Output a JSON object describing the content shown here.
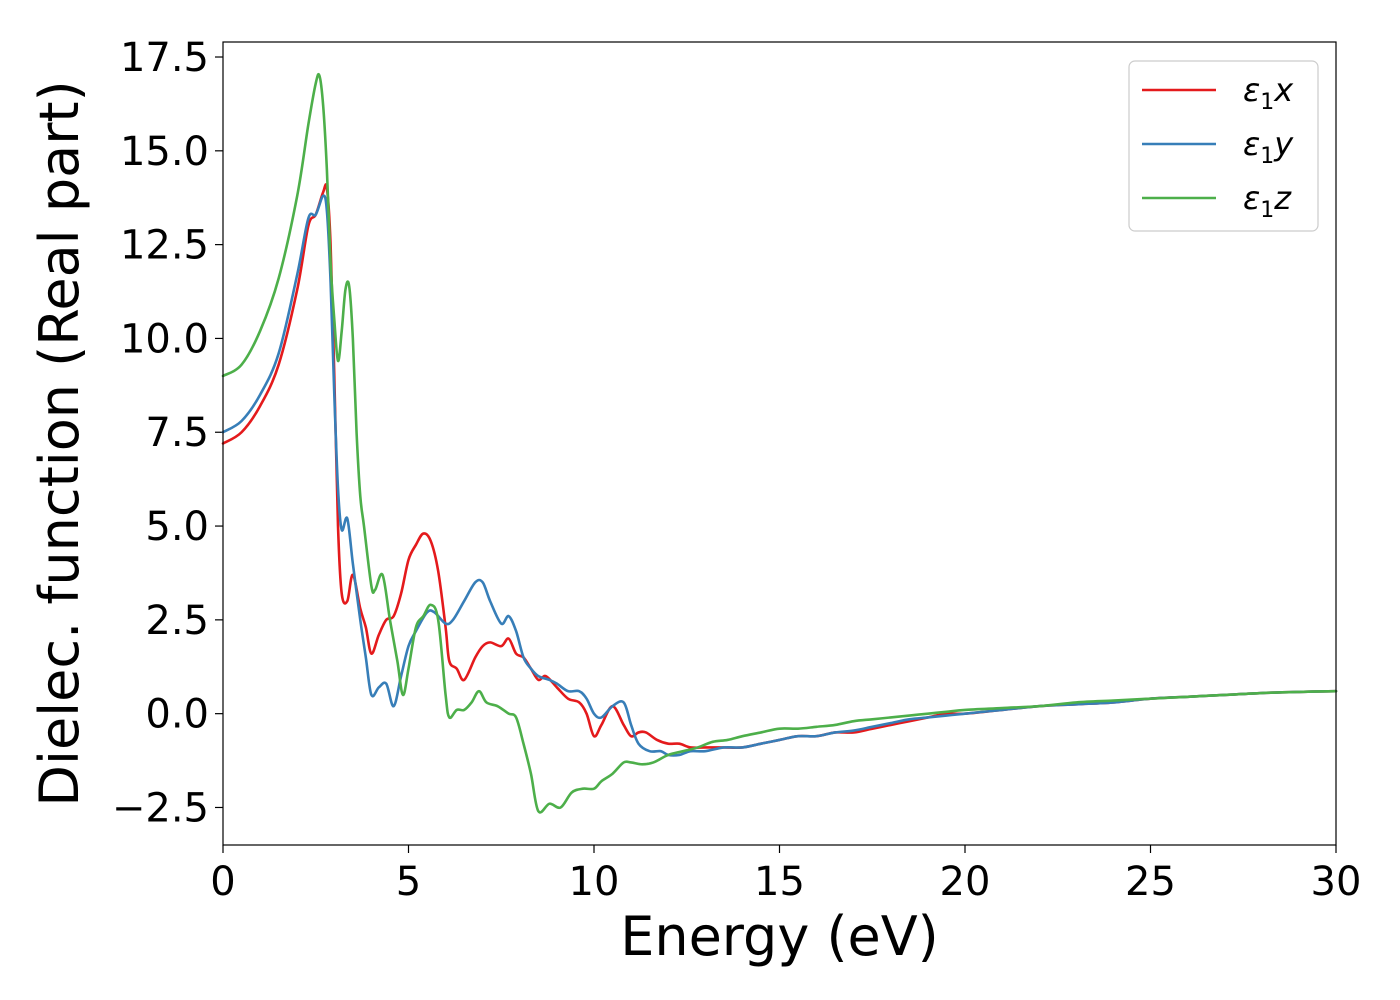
{
  "chart_data": {
    "type": "line",
    "xlabel": "Energy (eV)",
    "ylabel": "Dielec. function (Real part)",
    "xlim": [
      0,
      30
    ],
    "ylim": [
      -3.5,
      17.9
    ],
    "xticks": [
      0,
      5,
      10,
      15,
      20,
      25,
      30
    ],
    "xtick_labels": [
      "0",
      "5",
      "10",
      "15",
      "20",
      "25",
      "30"
    ],
    "yticks": [
      -2.5,
      0.0,
      2.5,
      5.0,
      7.5,
      10.0,
      12.5,
      15.0,
      17.5
    ],
    "ytick_labels": [
      "−2.5",
      "0.0",
      "2.5",
      "5.0",
      "7.5",
      "10.0",
      "12.5",
      "15.0",
      "17.5"
    ],
    "grid": false,
    "legend_position": "top-right",
    "series": [
      {
        "name": "ε1x",
        "legend_base": "ε",
        "legend_sub": "1",
        "legend_tail": "x",
        "color": "#e41a1c",
        "x": [
          0,
          0.5,
          1.0,
          1.5,
          2.0,
          2.3,
          2.5,
          2.7,
          2.8,
          2.9,
          3.0,
          3.1,
          3.2,
          3.35,
          3.5,
          3.7,
          3.85,
          4.0,
          4.2,
          4.4,
          4.6,
          4.8,
          5.0,
          5.2,
          5.4,
          5.6,
          5.8,
          6.0,
          6.1,
          6.3,
          6.5,
          6.8,
          7.0,
          7.2,
          7.5,
          7.7,
          7.9,
          8.1,
          8.3,
          8.5,
          8.7,
          9.0,
          9.3,
          9.6,
          9.8,
          10.0,
          10.2,
          10.5,
          10.8,
          11.0,
          11.2,
          11.4,
          11.7,
          12.0,
          12.3,
          12.6,
          13.0,
          13.5,
          14.0,
          14.5,
          15.0,
          15.5,
          16.0,
          16.5,
          17.0,
          17.5,
          18.0,
          18.5,
          19.0,
          19.5,
          20.0,
          21.0,
          22.0,
          23.0,
          24.0,
          25.0,
          26.0,
          27.0,
          28.0,
          29.0,
          30.0
        ],
        "y": [
          7.2,
          7.5,
          8.2,
          9.3,
          11.3,
          13.0,
          13.3,
          13.9,
          14.0,
          12.5,
          9.0,
          5.0,
          3.2,
          3.0,
          3.7,
          2.8,
          2.3,
          1.6,
          2.1,
          2.5,
          2.6,
          3.2,
          4.1,
          4.5,
          4.8,
          4.6,
          3.8,
          2.3,
          1.4,
          1.2,
          0.9,
          1.5,
          1.8,
          1.9,
          1.8,
          2.0,
          1.6,
          1.5,
          1.2,
          0.9,
          1.0,
          0.7,
          0.4,
          0.3,
          0.0,
          -0.6,
          -0.3,
          0.2,
          -0.3,
          -0.6,
          -0.5,
          -0.5,
          -0.7,
          -0.8,
          -0.8,
          -0.9,
          -0.9,
          -0.9,
          -0.9,
          -0.8,
          -0.7,
          -0.6,
          -0.6,
          -0.5,
          -0.5,
          -0.4,
          -0.3,
          -0.2,
          -0.1,
          0.0,
          0.0,
          0.1,
          0.2,
          0.25,
          0.3,
          0.4,
          0.45,
          0.5,
          0.55,
          0.58,
          0.6
        ]
      },
      {
        "name": "ε1y",
        "legend_base": "ε",
        "legend_sub": "1",
        "legend_tail": "y",
        "color": "#377eb8",
        "x": [
          0,
          0.5,
          1.0,
          1.5,
          2.0,
          2.3,
          2.5,
          2.7,
          2.8,
          2.9,
          3.0,
          3.1,
          3.2,
          3.35,
          3.5,
          3.7,
          3.85,
          4.0,
          4.2,
          4.4,
          4.6,
          4.8,
          5.0,
          5.2,
          5.5,
          5.7,
          6.0,
          6.2,
          6.5,
          6.8,
          7.0,
          7.2,
          7.5,
          7.7,
          7.9,
          8.1,
          8.3,
          8.5,
          8.8,
          9.0,
          9.3,
          9.6,
          9.8,
          10.0,
          10.2,
          10.5,
          10.8,
          11.0,
          11.2,
          11.5,
          11.8,
          12.0,
          12.3,
          12.6,
          13.0,
          13.5,
          14.0,
          14.5,
          15.0,
          15.5,
          16.0,
          16.5,
          17.0,
          17.5,
          18.0,
          18.5,
          19.0,
          19.5,
          20.0,
          21.0,
          22.0,
          23.0,
          24.0,
          25.0,
          26.0,
          27.0,
          28.0,
          29.0,
          30.0
        ],
        "y": [
          7.5,
          7.8,
          8.5,
          9.6,
          11.7,
          13.2,
          13.3,
          13.8,
          13.4,
          11.5,
          8.5,
          6.0,
          4.9,
          5.2,
          4.0,
          2.5,
          1.5,
          0.5,
          0.7,
          0.8,
          0.2,
          1.0,
          1.8,
          2.2,
          2.7,
          2.7,
          2.4,
          2.5,
          3.0,
          3.5,
          3.5,
          3.0,
          2.4,
          2.6,
          2.2,
          1.5,
          1.2,
          1.0,
          0.9,
          0.8,
          0.6,
          0.6,
          0.4,
          0.0,
          -0.1,
          0.2,
          0.3,
          -0.3,
          -0.8,
          -1.0,
          -1.0,
          -1.1,
          -1.1,
          -1.0,
          -1.0,
          -0.9,
          -0.9,
          -0.8,
          -0.7,
          -0.6,
          -0.6,
          -0.5,
          -0.45,
          -0.35,
          -0.25,
          -0.15,
          -0.1,
          -0.05,
          0.0,
          0.1,
          0.2,
          0.25,
          0.3,
          0.4,
          0.45,
          0.5,
          0.55,
          0.58,
          0.6
        ]
      },
      {
        "name": "ε1z",
        "legend_base": "ε",
        "legend_sub": "1",
        "legend_tail": "z",
        "color": "#4daf4a",
        "x": [
          0,
          0.5,
          1.0,
          1.5,
          2.0,
          2.3,
          2.5,
          2.6,
          2.7,
          2.8,
          2.9,
          3.0,
          3.1,
          3.2,
          3.3,
          3.4,
          3.5,
          3.6,
          3.7,
          3.8,
          4.0,
          4.1,
          4.3,
          4.5,
          4.7,
          4.85,
          5.0,
          5.2,
          5.4,
          5.6,
          5.8,
          6.0,
          6.1,
          6.3,
          6.5,
          6.7,
          6.9,
          7.1,
          7.4,
          7.7,
          7.9,
          8.1,
          8.3,
          8.5,
          8.8,
          9.1,
          9.4,
          9.7,
          10.0,
          10.2,
          10.5,
          10.8,
          11.0,
          11.3,
          11.6,
          12.0,
          12.4,
          12.8,
          13.2,
          13.6,
          14.0,
          14.5,
          15.0,
          15.5,
          16.0,
          16.5,
          17.0,
          17.5,
          18.0,
          18.5,
          19.0,
          19.5,
          20.0,
          21.0,
          22.0,
          23.0,
          24.0,
          25.0,
          26.0,
          27.0,
          28.0,
          29.0,
          30.0
        ],
        "y": [
          9.0,
          9.3,
          10.2,
          11.6,
          13.8,
          15.7,
          16.8,
          17.0,
          16.2,
          14.5,
          12.0,
          10.5,
          9.4,
          10.2,
          11.3,
          11.4,
          10.0,
          7.5,
          5.8,
          5.0,
          3.4,
          3.3,
          3.7,
          2.5,
          1.4,
          0.5,
          1.2,
          2.3,
          2.6,
          2.9,
          2.5,
          0.5,
          -0.1,
          0.1,
          0.1,
          0.3,
          0.6,
          0.3,
          0.2,
          0.0,
          -0.1,
          -0.8,
          -1.6,
          -2.6,
          -2.4,
          -2.5,
          -2.1,
          -2.0,
          -2.0,
          -1.8,
          -1.6,
          -1.3,
          -1.3,
          -1.35,
          -1.3,
          -1.1,
          -1.0,
          -0.9,
          -0.75,
          -0.7,
          -0.6,
          -0.5,
          -0.4,
          -0.4,
          -0.35,
          -0.3,
          -0.2,
          -0.15,
          -0.1,
          -0.05,
          0.0,
          0.05,
          0.1,
          0.15,
          0.2,
          0.3,
          0.35,
          0.4,
          0.45,
          0.5,
          0.55,
          0.58,
          0.6
        ]
      }
    ]
  }
}
